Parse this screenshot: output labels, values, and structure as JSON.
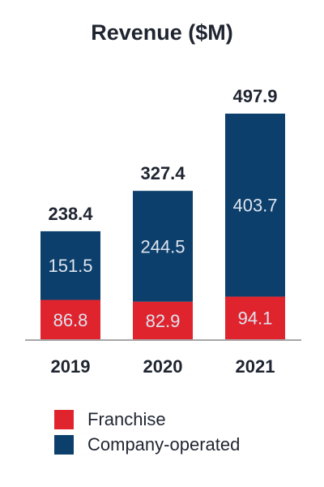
{
  "chart_data": {
    "type": "bar",
    "stacked": true,
    "title": "Revenue ($M)",
    "categories": [
      "2019",
      "2020",
      "2021"
    ],
    "series": [
      {
        "name": "Franchise",
        "values": [
          86.8,
          82.9,
          94.1
        ],
        "color": "#e0242e"
      },
      {
        "name": "Company-operated",
        "values": [
          151.5,
          244.5,
          403.7
        ],
        "color": "#0c3f6b"
      }
    ],
    "totals": [
      238.4,
      327.4,
      497.9
    ],
    "ylim": [
      0,
      530
    ],
    "grid": false,
    "legend_position": "bottom-left"
  },
  "colors": {
    "segment_label": "#dde4ef",
    "total_label": "#1f2530",
    "axis": "#a6a6a6"
  }
}
